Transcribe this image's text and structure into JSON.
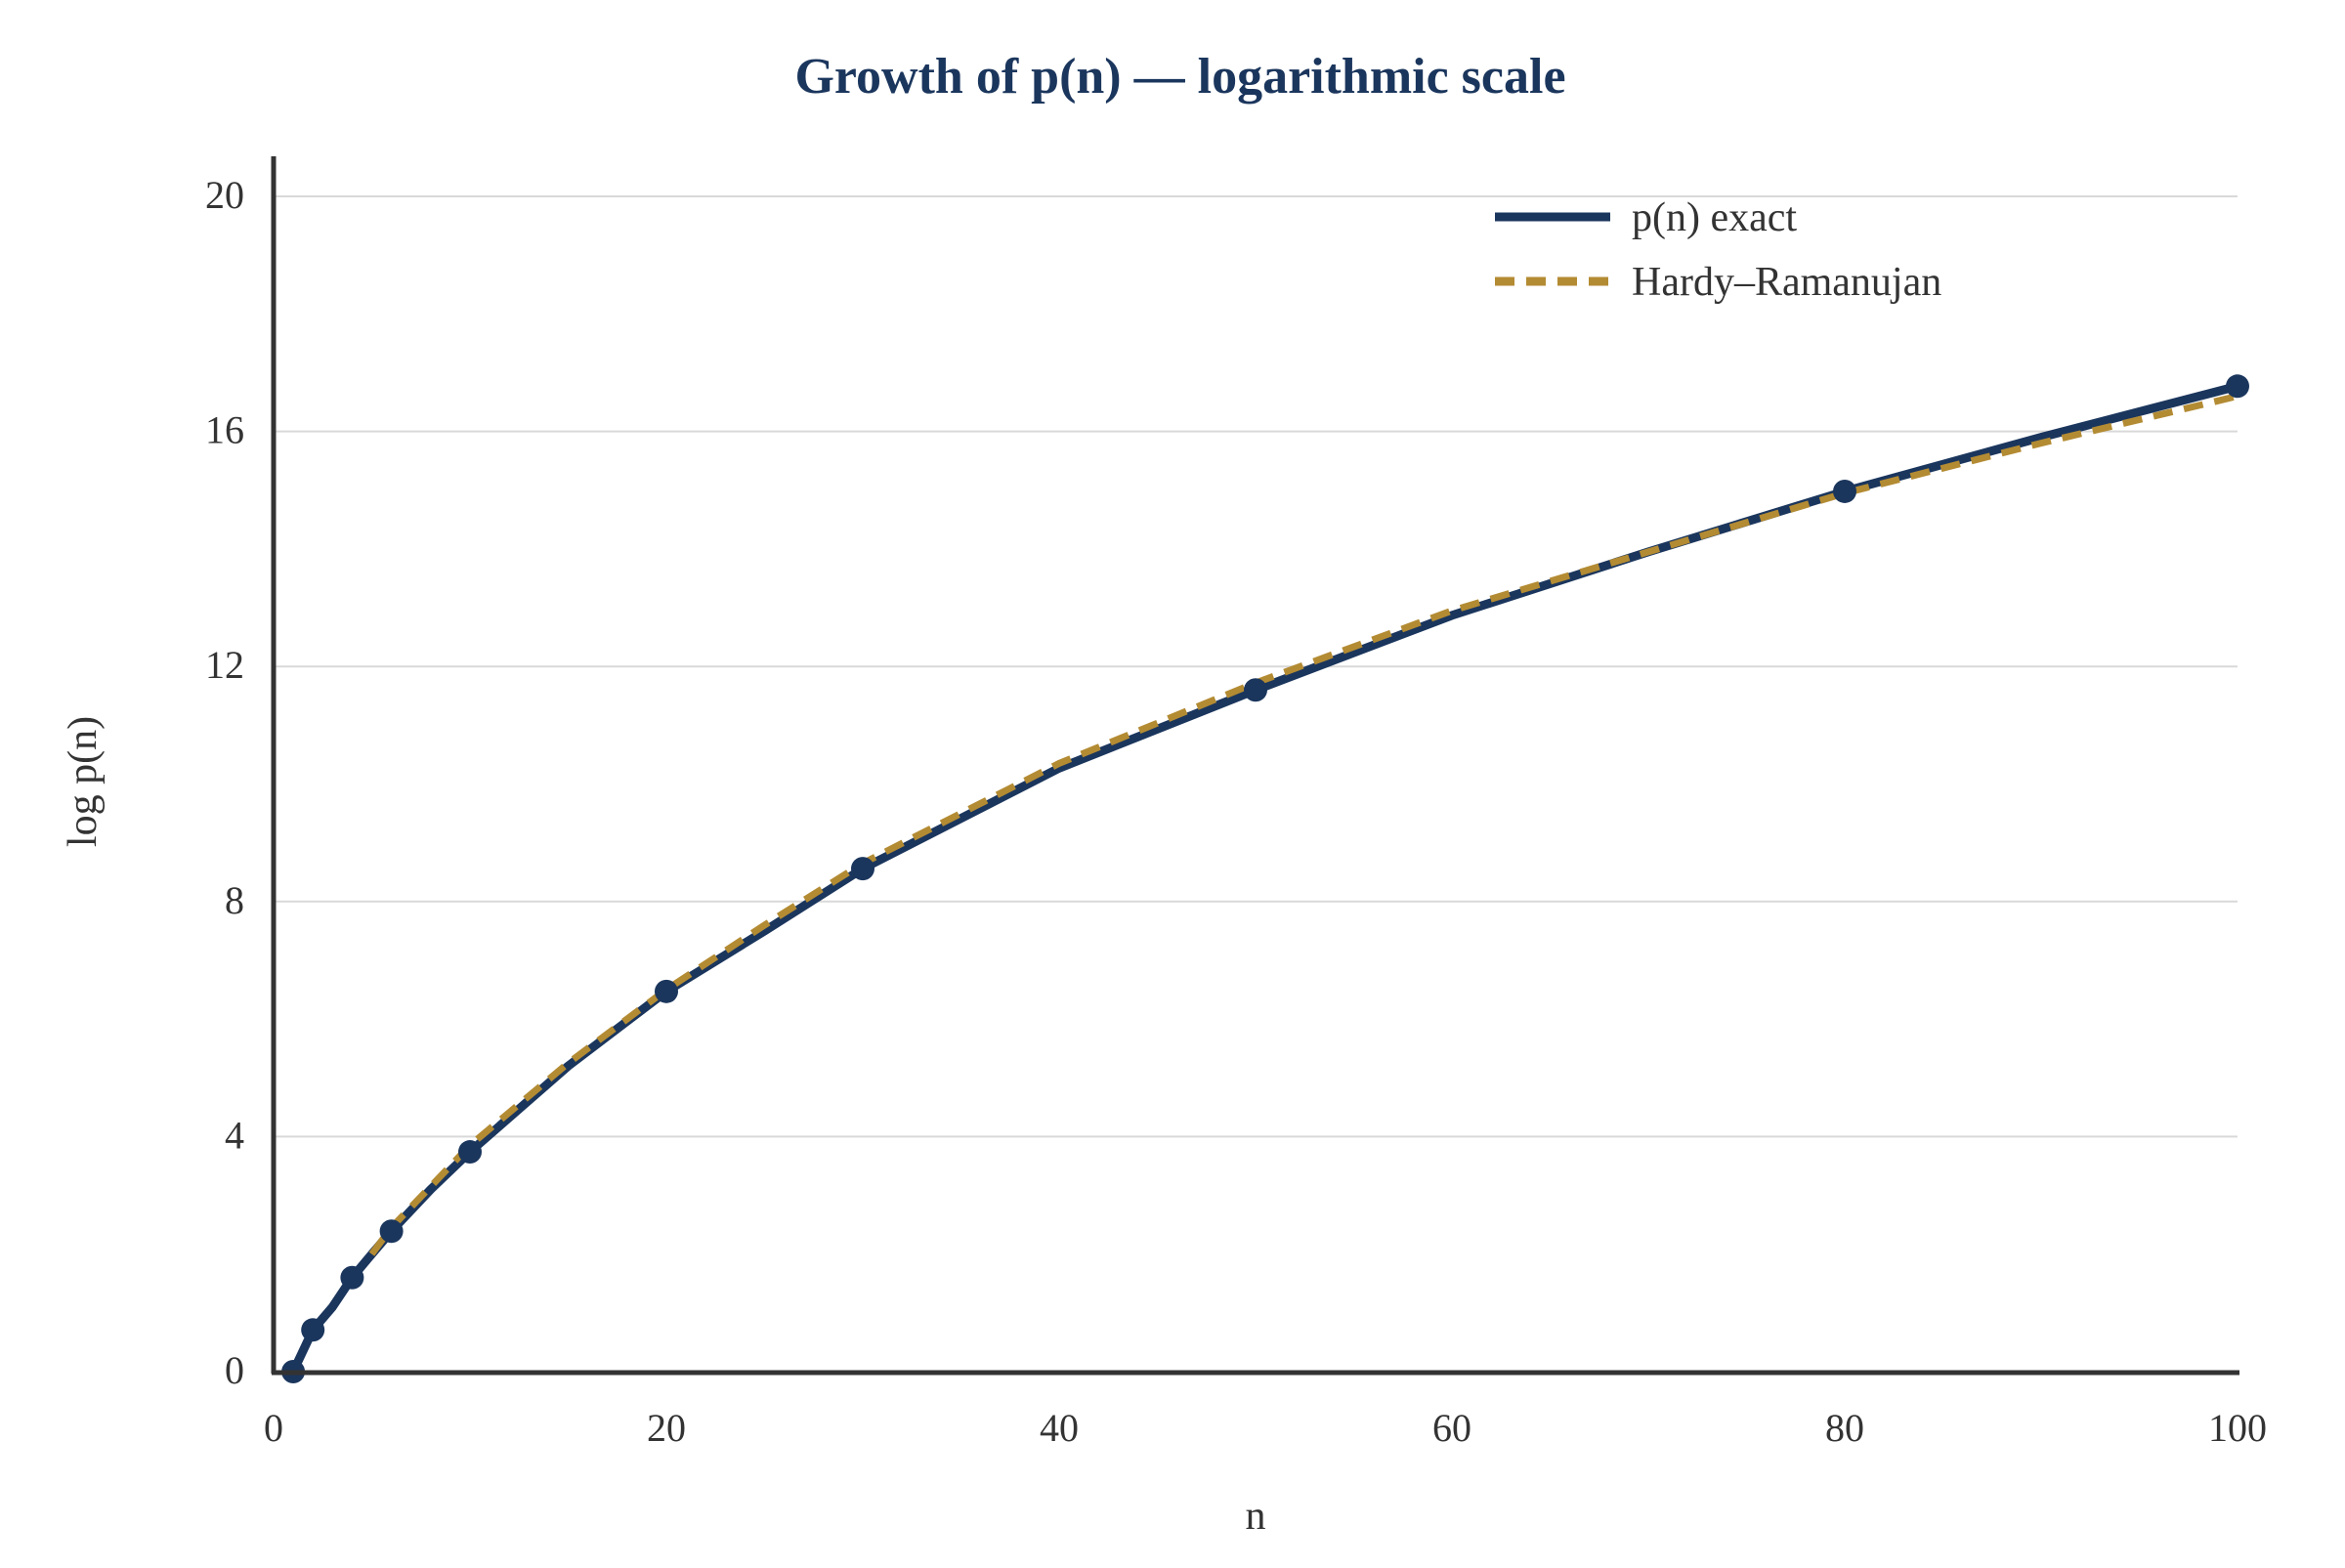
{
  "chart_data": {
    "type": "line",
    "title": "Growth of p(n) — logarithmic scale",
    "xlabel": "n",
    "ylabel": "log p(n)",
    "xlim": [
      0,
      100
    ],
    "ylim": [
      0,
      20
    ],
    "xticks": [
      0,
      20,
      40,
      60,
      80,
      100
    ],
    "yticks": [
      0,
      4,
      8,
      12,
      16,
      20
    ],
    "grid": "horizontal",
    "legend_position": "top-right",
    "series": [
      {
        "name": "p(n) exact",
        "color": "#1b365d",
        "style": "solid",
        "x": [
          1,
          2,
          3,
          4,
          5,
          6,
          8,
          10,
          15,
          20,
          25,
          30,
          40,
          50,
          60,
          70,
          80,
          90,
          100
        ],
        "y": [
          0,
          0.71,
          1.1,
          1.6,
          2.0,
          2.39,
          3.1,
          3.74,
          5.2,
          6.47,
          7.5,
          8.56,
          10.27,
          11.6,
          12.87,
          13.95,
          14.98,
          15.9,
          16.77
        ],
        "markers_at": [
          1,
          2,
          4,
          6,
          10,
          20,
          30,
          50,
          80,
          100
        ]
      },
      {
        "name": "Hardy–Ramanujan",
        "color": "#b38b33",
        "style": "dashed",
        "x": [
          5,
          6,
          8,
          10,
          15,
          20,
          25,
          30,
          40,
          50,
          60,
          70,
          80,
          90,
          100
        ],
        "y": [
          2.0,
          2.45,
          3.15,
          3.85,
          5.25,
          6.5,
          7.6,
          8.65,
          10.35,
          11.72,
          12.95,
          13.95,
          14.95,
          15.8,
          16.6
        ]
      }
    ]
  }
}
